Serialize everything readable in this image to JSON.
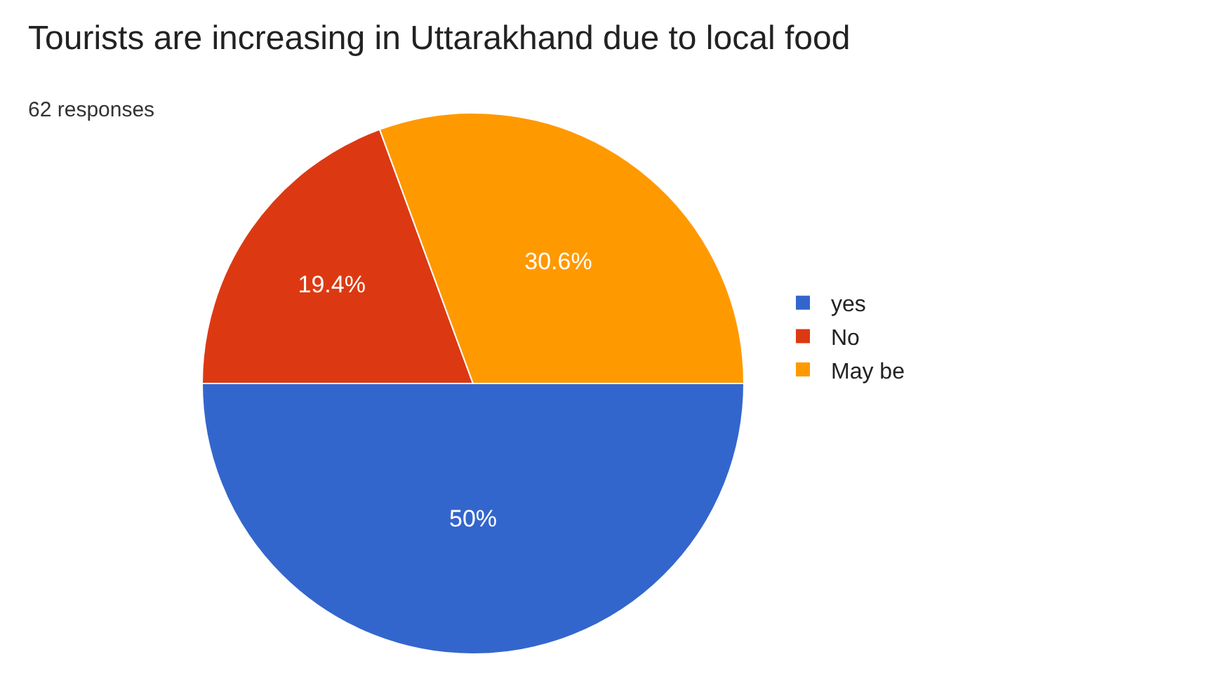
{
  "chart_data": {
    "type": "pie",
    "title": "Tourists are increasing in Uttarakhand due to local food",
    "subtitle": "62 responses",
    "categories": [
      "yes",
      "No",
      "May be"
    ],
    "values": [
      50,
      19.4,
      30.6
    ],
    "colors": [
      "#3366cc",
      "#dc3912",
      "#ff9900"
    ],
    "value_labels": [
      "50%",
      "19.4%",
      "30.6%"
    ],
    "legend": "right"
  }
}
